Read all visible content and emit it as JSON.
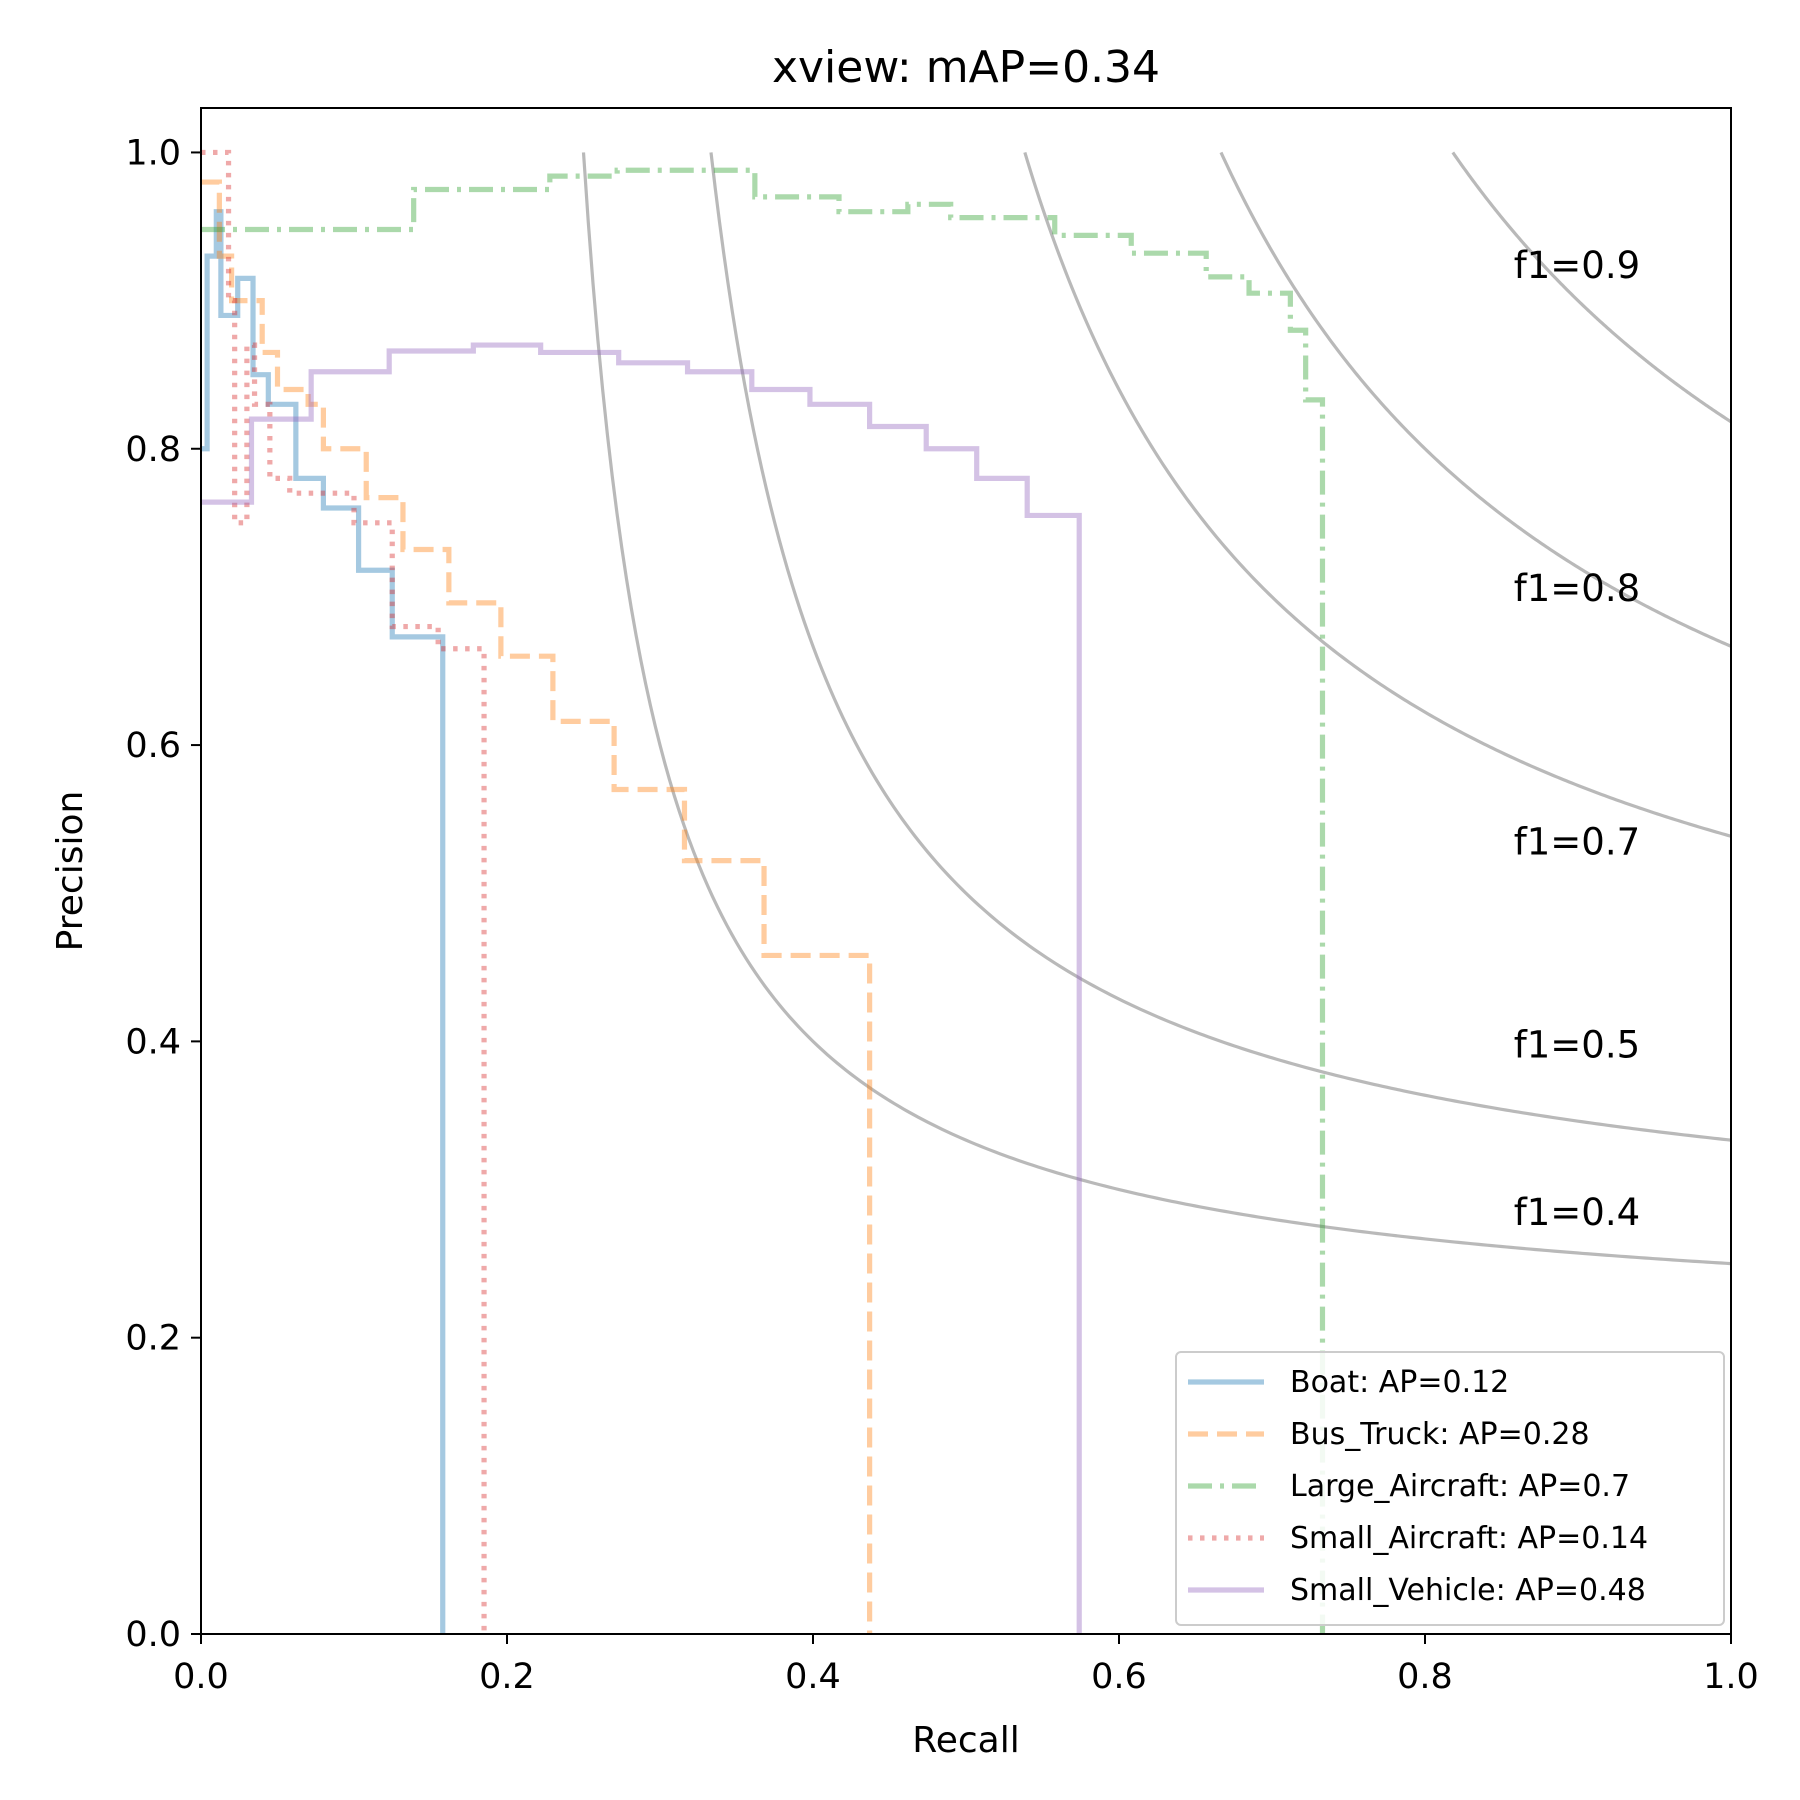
{
  "chart_data": {
    "type": "line",
    "title": "xview:  mAP=0.34",
    "xlabel": "Recall",
    "ylabel": "Precision",
    "xlim": [
      0.0,
      1.0
    ],
    "ylim": [
      0.0,
      1.03
    ],
    "grid": false,
    "legend_position": "lower-right",
    "xticks": [
      "0.0",
      "0.2",
      "0.4",
      "0.6",
      "0.8",
      "1.0"
    ],
    "yticks": [
      "0.0",
      "0.2",
      "0.4",
      "0.6",
      "0.8",
      "1.0"
    ],
    "series": [
      {
        "name": "Boat: AP=0.12",
        "color": "#1f77b4",
        "style": "solid",
        "points": [
          [
            0.0,
            0.8
          ],
          [
            0.004,
            0.8
          ],
          [
            0.004,
            0.93
          ],
          [
            0.01,
            0.93
          ],
          [
            0.01,
            0.96
          ],
          [
            0.013,
            0.96
          ],
          [
            0.013,
            0.89
          ],
          [
            0.024,
            0.89
          ],
          [
            0.024,
            0.915
          ],
          [
            0.034,
            0.915
          ],
          [
            0.034,
            0.85
          ],
          [
            0.044,
            0.85
          ],
          [
            0.044,
            0.83
          ],
          [
            0.062,
            0.83
          ],
          [
            0.062,
            0.78
          ],
          [
            0.08,
            0.78
          ],
          [
            0.08,
            0.76
          ],
          [
            0.103,
            0.76
          ],
          [
            0.103,
            0.718
          ],
          [
            0.125,
            0.718
          ],
          [
            0.125,
            0.673
          ],
          [
            0.158,
            0.673
          ],
          [
            0.158,
            0.0
          ]
        ]
      },
      {
        "name": "Bus_Truck: AP=0.28",
        "color": "#ff7f0e",
        "style": "dashed",
        "points": [
          [
            0.0,
            0.98
          ],
          [
            0.012,
            0.98
          ],
          [
            0.012,
            0.93
          ],
          [
            0.02,
            0.93
          ],
          [
            0.02,
            0.9
          ],
          [
            0.04,
            0.9
          ],
          [
            0.04,
            0.865
          ],
          [
            0.05,
            0.865
          ],
          [
            0.05,
            0.84
          ],
          [
            0.07,
            0.84
          ],
          [
            0.07,
            0.83
          ],
          [
            0.08,
            0.83
          ],
          [
            0.08,
            0.8
          ],
          [
            0.108,
            0.8
          ],
          [
            0.108,
            0.767
          ],
          [
            0.132,
            0.767
          ],
          [
            0.132,
            0.732
          ],
          [
            0.162,
            0.732
          ],
          [
            0.162,
            0.696
          ],
          [
            0.196,
            0.696
          ],
          [
            0.196,
            0.66
          ],
          [
            0.23,
            0.66
          ],
          [
            0.23,
            0.616
          ],
          [
            0.27,
            0.616
          ],
          [
            0.27,
            0.57
          ],
          [
            0.316,
            0.57
          ],
          [
            0.316,
            0.522
          ],
          [
            0.368,
            0.522
          ],
          [
            0.368,
            0.458
          ],
          [
            0.437,
            0.458
          ],
          [
            0.437,
            0.0
          ]
        ]
      },
      {
        "name": "Large_Aircraft: AP=0.7",
        "color": "#2ca02c",
        "style": "dashdot",
        "points": [
          [
            0.0,
            0.948
          ],
          [
            0.139,
            0.948
          ],
          [
            0.139,
            0.975
          ],
          [
            0.228,
            0.975
          ],
          [
            0.228,
            0.984
          ],
          [
            0.272,
            0.984
          ],
          [
            0.272,
            0.988
          ],
          [
            0.362,
            0.988
          ],
          [
            0.362,
            0.97
          ],
          [
            0.417,
            0.97
          ],
          [
            0.417,
            0.96
          ],
          [
            0.462,
            0.96
          ],
          [
            0.462,
            0.965
          ],
          [
            0.49,
            0.965
          ],
          [
            0.49,
            0.956
          ],
          [
            0.558,
            0.956
          ],
          [
            0.558,
            0.944
          ],
          [
            0.608,
            0.944
          ],
          [
            0.608,
            0.932
          ],
          [
            0.657,
            0.932
          ],
          [
            0.657,
            0.916
          ],
          [
            0.685,
            0.916
          ],
          [
            0.685,
            0.905
          ],
          [
            0.712,
            0.905
          ],
          [
            0.712,
            0.88
          ],
          [
            0.722,
            0.88
          ],
          [
            0.722,
            0.833
          ],
          [
            0.733,
            0.833
          ],
          [
            0.733,
            0.0
          ]
        ]
      },
      {
        "name": "Small_Aircraft: AP=0.14",
        "color": "#d62728",
        "style": "dotted",
        "points": [
          [
            0.0,
            1.0
          ],
          [
            0.018,
            1.0
          ],
          [
            0.018,
            0.9
          ],
          [
            0.022,
            0.9
          ],
          [
            0.022,
            0.75
          ],
          [
            0.03,
            0.75
          ],
          [
            0.03,
            0.87
          ],
          [
            0.035,
            0.87
          ],
          [
            0.035,
            0.83
          ],
          [
            0.045,
            0.83
          ],
          [
            0.045,
            0.78
          ],
          [
            0.058,
            0.78
          ],
          [
            0.058,
            0.77
          ],
          [
            0.1,
            0.77
          ],
          [
            0.1,
            0.75
          ],
          [
            0.125,
            0.75
          ],
          [
            0.125,
            0.68
          ],
          [
            0.155,
            0.68
          ],
          [
            0.155,
            0.665
          ],
          [
            0.185,
            0.665
          ],
          [
            0.185,
            0.0
          ]
        ]
      },
      {
        "name": "Small_Vehicle: AP=0.48",
        "color": "#9467bd",
        "style": "solid",
        "points": [
          [
            0.0,
            0.764
          ],
          [
            0.033,
            0.764
          ],
          [
            0.033,
            0.82
          ],
          [
            0.072,
            0.82
          ],
          [
            0.072,
            0.852
          ],
          [
            0.123,
            0.852
          ],
          [
            0.123,
            0.866
          ],
          [
            0.178,
            0.866
          ],
          [
            0.178,
            0.87
          ],
          [
            0.222,
            0.87
          ],
          [
            0.222,
            0.865
          ],
          [
            0.273,
            0.865
          ],
          [
            0.273,
            0.858
          ],
          [
            0.318,
            0.858
          ],
          [
            0.318,
            0.852
          ],
          [
            0.36,
            0.852
          ],
          [
            0.36,
            0.84
          ],
          [
            0.398,
            0.84
          ],
          [
            0.398,
            0.83
          ],
          [
            0.437,
            0.83
          ],
          [
            0.437,
            0.815
          ],
          [
            0.474,
            0.815
          ],
          [
            0.474,
            0.8
          ],
          [
            0.507,
            0.8
          ],
          [
            0.507,
            0.78
          ],
          [
            0.54,
            0.78
          ],
          [
            0.54,
            0.755
          ],
          [
            0.574,
            0.755
          ],
          [
            0.574,
            0.0
          ]
        ]
      }
    ],
    "iso_f1": {
      "color": "#808080",
      "values": [
        0.4,
        0.5,
        0.7,
        0.8,
        0.9
      ],
      "labels": [
        "f1=0.4",
        "f1=0.5",
        "f1=0.7",
        "f1=0.8",
        "f1=0.9"
      ]
    }
  }
}
